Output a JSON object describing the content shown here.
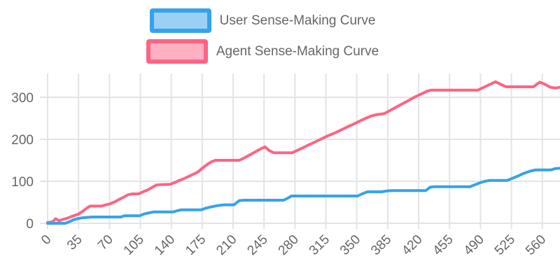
{
  "legend": {
    "items": [
      {
        "label": "User Sense-Making Curve",
        "color": "#36A2EB",
        "fill": "#9BD0F5"
      },
      {
        "label": "Agent Sense-Making Curve",
        "color": "#FF6384",
        "fill": "#FFB1C1"
      }
    ]
  },
  "chart_data": {
    "type": "line",
    "title": "",
    "xlabel": "",
    "ylabel": "",
    "grid": true,
    "legend_position": "top",
    "x_ticks": [
      0,
      35,
      70,
      105,
      140,
      175,
      210,
      245,
      280,
      315,
      350,
      385,
      420,
      455,
      490,
      525,
      560
    ],
    "y_ticks": [
      0,
      100,
      200,
      300
    ],
    "xlim": [
      0,
      580
    ],
    "ylim": [
      0,
      356
    ],
    "colors": {
      "grid": "#e4e4e4",
      "tick_text": "#666666",
      "background": "#ffffff"
    },
    "series": [
      {
        "name": "User Sense-Making Curve",
        "color": "#36A2EB",
        "points": [
          [
            0,
            0
          ],
          [
            20,
            0
          ],
          [
            25,
            4
          ],
          [
            30,
            9
          ],
          [
            34,
            11
          ],
          [
            39,
            13
          ],
          [
            44,
            14
          ],
          [
            50,
            15
          ],
          [
            83,
            15
          ],
          [
            87,
            18
          ],
          [
            104,
            18
          ],
          [
            109,
            22
          ],
          [
            115,
            25
          ],
          [
            120,
            27
          ],
          [
            142,
            27
          ],
          [
            147,
            30
          ],
          [
            151,
            32
          ],
          [
            174,
            32
          ],
          [
            179,
            36
          ],
          [
            185,
            39
          ],
          [
            192,
            42
          ],
          [
            199,
            44
          ],
          [
            211,
            44
          ],
          [
            217,
            54
          ],
          [
            222,
            55
          ],
          [
            267,
            55
          ],
          [
            272,
            60
          ],
          [
            276,
            65
          ],
          [
            351,
            65
          ],
          [
            356,
            70
          ],
          [
            362,
            75
          ],
          [
            378,
            75
          ],
          [
            384,
            77
          ],
          [
            390,
            78
          ],
          [
            428,
            78
          ],
          [
            433,
            86
          ],
          [
            437,
            87
          ],
          [
            478,
            87
          ],
          [
            484,
            92
          ],
          [
            490,
            97
          ],
          [
            495,
            100
          ],
          [
            500,
            102
          ],
          [
            520,
            102
          ],
          [
            526,
            107
          ],
          [
            533,
            113
          ],
          [
            539,
            119
          ],
          [
            546,
            124
          ],
          [
            552,
            127
          ],
          [
            570,
            127
          ],
          [
            574,
            130
          ],
          [
            580,
            131
          ]
        ]
      },
      {
        "name": "Agent Sense-Making Curve",
        "color": "#FF6384",
        "points": [
          [
            0,
            2
          ],
          [
            6,
            4
          ],
          [
            9,
            11
          ],
          [
            13,
            6
          ],
          [
            17,
            9
          ],
          [
            22,
            12
          ],
          [
            27,
            16
          ],
          [
            32,
            20
          ],
          [
            35,
            22
          ],
          [
            40,
            29
          ],
          [
            45,
            37
          ],
          [
            48,
            41
          ],
          [
            61,
            41
          ],
          [
            66,
            44
          ],
          [
            70,
            46
          ],
          [
            76,
            51
          ],
          [
            81,
            57
          ],
          [
            86,
            62
          ],
          [
            91,
            68
          ],
          [
            96,
            70
          ],
          [
            103,
            70
          ],
          [
            108,
            75
          ],
          [
            113,
            79
          ],
          [
            118,
            85
          ],
          [
            123,
            91
          ],
          [
            128,
            92
          ],
          [
            139,
            93
          ],
          [
            144,
            97
          ],
          [
            148,
            101
          ],
          [
            153,
            105
          ],
          [
            158,
            110
          ],
          [
            164,
            116
          ],
          [
            170,
            122
          ],
          [
            175,
            131
          ],
          [
            180,
            139
          ],
          [
            185,
            146
          ],
          [
            190,
            150
          ],
          [
            217,
            150
          ],
          [
            223,
            156
          ],
          [
            229,
            163
          ],
          [
            235,
            170
          ],
          [
            241,
            177
          ],
          [
            246,
            182
          ],
          [
            251,
            173
          ],
          [
            256,
            168
          ],
          [
            277,
            168
          ],
          [
            283,
            174
          ],
          [
            290,
            181
          ],
          [
            297,
            188
          ],
          [
            304,
            195
          ],
          [
            311,
            202
          ],
          [
            318,
            209
          ],
          [
            325,
            215
          ],
          [
            332,
            222
          ],
          [
            339,
            229
          ],
          [
            346,
            236
          ],
          [
            353,
            243
          ],
          [
            360,
            250
          ],
          [
            367,
            256
          ],
          [
            373,
            259
          ],
          [
            381,
            261
          ],
          [
            388,
            269
          ],
          [
            395,
            277
          ],
          [
            402,
            285
          ],
          [
            409,
            293
          ],
          [
            416,
            301
          ],
          [
            423,
            308
          ],
          [
            429,
            314
          ],
          [
            434,
            317
          ],
          [
            487,
            317
          ],
          [
            492,
            322
          ],
          [
            500,
            330
          ],
          [
            507,
            337
          ],
          [
            513,
            331
          ],
          [
            519,
            325
          ],
          [
            550,
            325
          ],
          [
            557,
            336
          ],
          [
            563,
            331
          ],
          [
            569,
            324
          ],
          [
            575,
            322
          ],
          [
            580,
            324
          ]
        ]
      }
    ]
  }
}
